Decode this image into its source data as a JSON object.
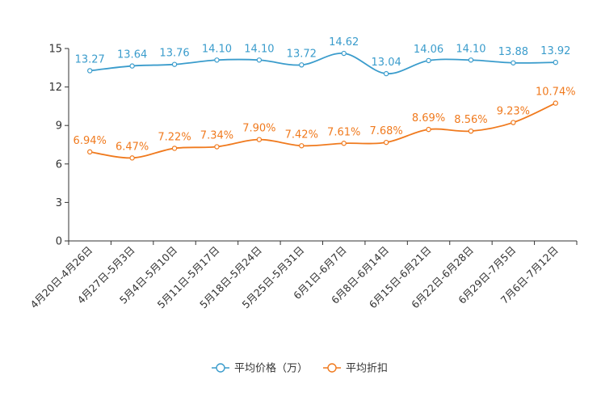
{
  "chart_data": {
    "type": "line",
    "categories": [
      "4月20日-4月26日",
      "4月27日-5月3日",
      "5月4日-5月10日",
      "5月11日-5月17日",
      "5月18日-5月24日",
      "5月25日-5月31日",
      "6月1日-6月7日",
      "6月8日-6月14日",
      "6月15日-6月21日",
      "6月22日-6月28日",
      "6月29日-7月5日",
      "7月6日-7月12日"
    ],
    "ylim": [
      0,
      15
    ],
    "yticks": [
      0,
      3,
      6,
      9,
      12,
      15
    ],
    "series": [
      {
        "name": "平均价格（万）",
        "color": "#3A9CCC",
        "values": [
          13.27,
          13.64,
          13.76,
          14.1,
          14.1,
          13.72,
          14.62,
          13.04,
          14.06,
          14.1,
          13.88,
          13.92
        ],
        "labels": [
          "13.27",
          "13.64",
          "13.76",
          "14.10",
          "14.10",
          "13.72",
          "14.62",
          "13.04",
          "14.06",
          "14.10",
          "13.88",
          "13.92"
        ]
      },
      {
        "name": "平均折扣",
        "color": "#F07A1E",
        "values": [
          6.94,
          6.47,
          7.22,
          7.34,
          7.9,
          7.42,
          7.61,
          7.68,
          8.69,
          8.56,
          9.23,
          10.74
        ],
        "labels": [
          "6.94%",
          "6.47%",
          "7.22%",
          "7.34%",
          "7.90%",
          "7.42%",
          "7.61%",
          "7.68%",
          "8.69%",
          "8.56%",
          "9.23%",
          "10.74%"
        ]
      }
    ],
    "legend_position": "bottom"
  }
}
